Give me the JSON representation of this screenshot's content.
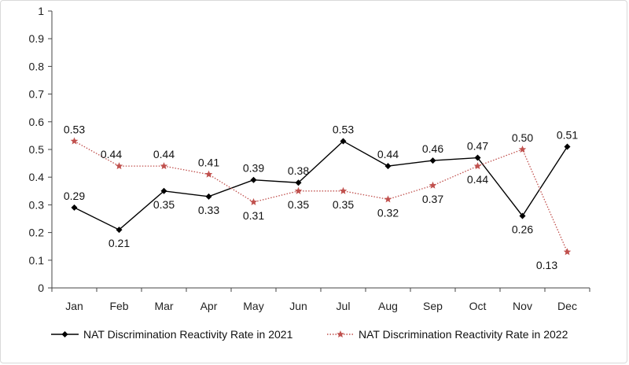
{
  "chart_data": {
    "type": "line",
    "title": "",
    "xlabel": "",
    "ylabel": "",
    "ylim": [
      0,
      1
    ],
    "yticks": [
      "0",
      "0.1",
      "0.2",
      "0.3",
      "0.4",
      "0.5",
      "0.6",
      "0.7",
      "0.8",
      "0.9",
      "1"
    ],
    "categories": [
      "Jan",
      "Feb",
      "Mar",
      "Apr",
      "May",
      "Jun",
      "Jul",
      "Aug",
      "Sep",
      "Oct",
      "Nov",
      "Dec"
    ],
    "grid": false,
    "legend_position": "bottom",
    "series": [
      {
        "name": "NAT Discrimination Reactivity Rate in 2021",
        "color": "#000000",
        "marker": "diamond",
        "line_style": "solid",
        "values": [
          0.29,
          0.21,
          0.35,
          0.33,
          0.39,
          0.38,
          0.53,
          0.44,
          0.46,
          0.47,
          0.26,
          0.51
        ],
        "labels": [
          "0.29",
          "0.21",
          "0.35",
          "0.33",
          "0.39",
          "0.38",
          "0.53",
          "0.44",
          "0.46",
          "0.47",
          "0.26",
          "0.51"
        ]
      },
      {
        "name": "NAT Discrimination Reactivity Rate in 2022",
        "color": "#c0504d",
        "marker": "star",
        "line_style": "dotted",
        "values": [
          0.53,
          0.44,
          0.44,
          0.41,
          0.31,
          0.35,
          0.35,
          0.32,
          0.37,
          0.44,
          0.5,
          0.13
        ],
        "labels": [
          "0.53",
          "0.44",
          "0.44",
          "0.41",
          "0.31",
          "0.35",
          "0.35",
          "0.32",
          "0.37",
          "0.44",
          "0.50",
          "0.13"
        ]
      }
    ]
  }
}
